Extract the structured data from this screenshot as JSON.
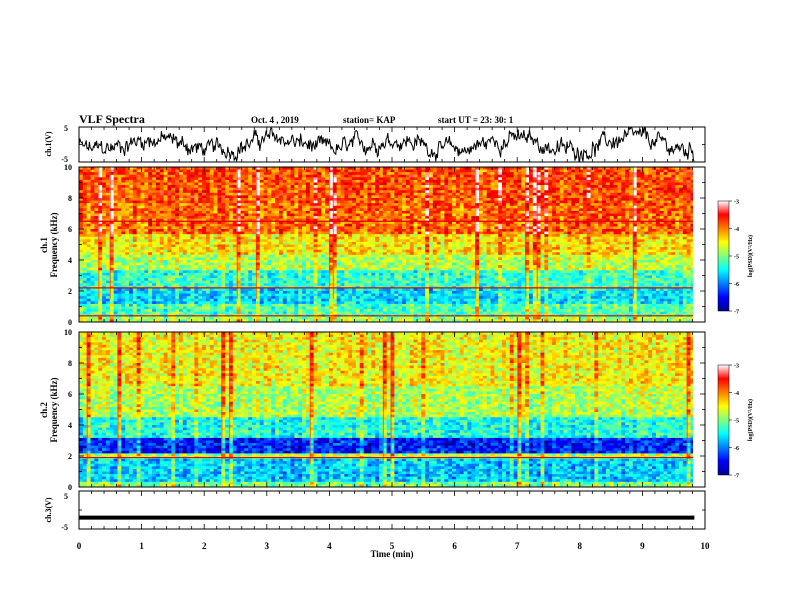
{
  "header": {
    "title": "VLF Spectra",
    "date": "Oct. 4 , 2019",
    "station": "station= KAP",
    "start": "start  UT  =   23: 30: 1"
  },
  "chart_data": [
    {
      "id": "ch1v",
      "type": "line",
      "ylabel": "ch.1(V)",
      "ylim": [
        -5,
        5
      ],
      "yticks": [
        "5",
        "-5"
      ],
      "xlim": [
        0,
        10
      ],
      "series": [
        {
          "color": "#000000"
        }
      ]
    },
    {
      "id": "ch1-spectrogram",
      "type": "heatmap",
      "ylabel": "ch.1\nFrequency (kHz)",
      "ylim": [
        0,
        10
      ],
      "yticks": [
        "0",
        "2",
        "4",
        "6",
        "8",
        "10"
      ],
      "xlim": [
        0,
        9.83
      ],
      "colorbar": {
        "label": "log(PSD)(V²/Hz)",
        "range": [
          -7,
          -3
        ],
        "ticks": [
          "-3",
          "-4",
          "-5",
          "-6",
          "-7"
        ]
      },
      "bands": [
        {
          "fmin": 0,
          "fmax": 0.4,
          "log_psd": -4.8
        },
        {
          "fmin": 0.4,
          "fmax": 1.2,
          "log_psd": -5.2
        },
        {
          "fmin": 1.2,
          "fmax": 2.2,
          "log_psd": -5.6
        },
        {
          "fmin": 2.2,
          "fmax": 3.3,
          "log_psd": -5.3
        },
        {
          "fmin": 3.3,
          "fmax": 4.3,
          "log_psd": -4.8
        },
        {
          "fmin": 4.3,
          "fmax": 5.6,
          "log_psd": -4.4
        },
        {
          "fmin": 5.6,
          "fmax": 7.6,
          "log_psd": -3.9
        },
        {
          "fmin": 7.6,
          "fmax": 10,
          "log_psd": -3.8
        }
      ],
      "lines_khz": [
        0.4,
        2.2,
        6.5
      ]
    },
    {
      "id": "ch2-spectrogram",
      "type": "heatmap",
      "ylabel": "ch.2\nFrequency (kHz)",
      "ylim": [
        0,
        10
      ],
      "yticks": [
        "0",
        "2",
        "4",
        "6",
        "8",
        "10"
      ],
      "xlim": [
        0,
        9.83
      ],
      "colorbar": {
        "label": "log(PSD)(V²/Hz)",
        "range": [
          -7,
          -3
        ],
        "ticks": [
          "-3",
          "-4",
          "-5",
          "-6",
          "-7"
        ]
      },
      "bands": [
        {
          "fmin": 0,
          "fmax": 0.4,
          "log_psd": -5.0
        },
        {
          "fmin": 0.4,
          "fmax": 1.8,
          "log_psd": -5.7
        },
        {
          "fmin": 1.8,
          "fmax": 2.1,
          "log_psd": -4.8
        },
        {
          "fmin": 2.1,
          "fmax": 3.2,
          "log_psd": -6.4
        },
        {
          "fmin": 3.2,
          "fmax": 4.5,
          "log_psd": -5.4
        },
        {
          "fmin": 4.5,
          "fmax": 6.5,
          "log_psd": -4.8
        },
        {
          "fmin": 6.5,
          "fmax": 10,
          "log_psd": -4.5
        }
      ],
      "lines_khz": [
        1.9
      ]
    },
    {
      "id": "ch3v",
      "type": "line",
      "ylabel": "ch.3(V)",
      "ylim": [
        -5,
        5
      ],
      "yticks": [
        "5",
        "-5"
      ],
      "xlim": [
        0,
        10
      ],
      "xlabel": "Time (min)",
      "xticks": [
        "0",
        "1",
        "2",
        "3",
        "4",
        "5",
        "6",
        "7",
        "8",
        "9",
        "10"
      ],
      "series": [
        {
          "x": [
            0,
            9.83
          ],
          "y": [
            -2,
            -2
          ],
          "color": "#000000"
        }
      ]
    }
  ]
}
